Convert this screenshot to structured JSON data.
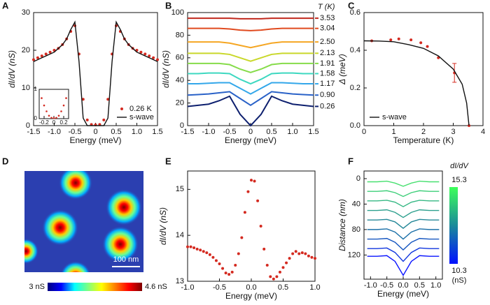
{
  "chart_data": [
    {
      "type": "line",
      "panel_label": "A",
      "xlabel": "Energy (meV)",
      "ylabel": "dI/dV (nS)",
      "xlim": [
        -1.5,
        1.5
      ],
      "ylim": [
        0,
        30
      ],
      "xticks": [
        -1.5,
        {
          "value": -1,
          "label": "-1.0"
        },
        -0.5,
        0,
        0.5,
        {
          "value": 1,
          "label": "1.0"
        },
        1.5
      ],
      "yticks": [
        0,
        10,
        20,
        30
      ],
      "legend": "lower right",
      "x": [
        -1.5,
        -1.4,
        -1.3,
        -1.2,
        -1.1,
        -1.0,
        -0.9,
        -0.8,
        -0.7,
        -0.6,
        -0.5,
        -0.4,
        -0.3,
        -0.2,
        -0.1,
        0,
        0.1,
        0.2,
        0.3,
        0.4,
        0.5,
        0.6,
        0.7,
        0.8,
        0.9,
        1.0,
        1.1,
        1.2,
        1.3,
        1.4,
        1.5
      ],
      "series": [
        {
          "name": "0.26 K",
          "mode": "markers",
          "color": "#d42a20",
          "values": [
            17.5,
            18,
            18.5,
            19,
            19.5,
            20,
            20.5,
            21.5,
            23,
            25,
            26.5,
            19,
            7,
            1.5,
            0.3,
            0.2,
            0.3,
            1.5,
            7,
            19,
            26.5,
            25,
            23,
            21.5,
            20.5,
            20,
            19.5,
            19,
            18.5,
            18,
            17.5
          ]
        },
        {
          "name": "s-wave",
          "mode": "line",
          "color": "#111111",
          "values": [
            17,
            17.5,
            18,
            18.5,
            19,
            19.5,
            20.5,
            21.5,
            23,
            25.5,
            27.5,
            17,
            2,
            0,
            0,
            0,
            0,
            0,
            2,
            17,
            27.5,
            25.5,
            23,
            21.5,
            20.5,
            19.5,
            19,
            18.5,
            18,
            17.5,
            17
          ]
        }
      ]
    },
    {
      "type": "scatter",
      "xlim": [
        -0.3,
        0.3
      ],
      "ylim": [
        0,
        1
      ],
      "xticks": [
        -0.2,
        0,
        0.2
      ],
      "yticks": [
        0,
        1
      ],
      "x": [
        -0.25,
        -0.2,
        -0.15,
        -0.1,
        -0.05,
        0,
        0.05,
        0.1,
        0.15,
        0.2,
        0.25
      ],
      "series": [
        {
          "mode": "markers",
          "color": "#d42a20",
          "values": [
            0.7,
            0.45,
            0.25,
            0.1,
            0.03,
            0.02,
            0.03,
            0.1,
            0.25,
            0.45,
            0.7
          ]
        }
      ]
    },
    {
      "type": "line",
      "panel_label": "B",
      "xlabel": "Energy (meV)",
      "ylabel": "dI/dV (nS)",
      "legend_title": "T (K)",
      "xlim": [
        -1.5,
        1.5
      ],
      "ylim": [
        0,
        100
      ],
      "xticks": [
        -1.5,
        {
          "value": -1,
          "label": "-1.0"
        },
        -0.5,
        0,
        0.5,
        {
          "value": 1,
          "label": "1.0"
        },
        1.5
      ],
      "yticks": [
        0,
        20,
        40,
        60,
        80,
        100
      ],
      "legend": "right",
      "x": [
        -1.5,
        -1.25,
        -1,
        -0.75,
        -0.5,
        -0.25,
        0,
        0.25,
        0.5,
        0.75,
        1,
        1.25,
        1.5
      ],
      "series": [
        {
          "name": "3.53",
          "color": "#c0271c",
          "values": [
            95,
            95,
            95,
            95,
            95,
            94.5,
            94.5,
            94.5,
            95,
            95,
            95,
            95,
            95
          ]
        },
        {
          "name": "3.04",
          "color": "#e04a1f",
          "values": [
            86,
            86,
            86,
            86,
            85.5,
            84.5,
            84,
            84.5,
            85.5,
            86,
            86,
            86,
            86
          ]
        },
        {
          "name": "2.50",
          "color": "#f5a623",
          "values": [
            74,
            74,
            74,
            74,
            73,
            71,
            69,
            71,
            73,
            74,
            74,
            74,
            74
          ]
        },
        {
          "name": "2.13",
          "color": "#c9d82a",
          "values": [
            64,
            64,
            64,
            64,
            63,
            60,
            57,
            60,
            63,
            64,
            64,
            64,
            64
          ]
        },
        {
          "name": "1.91",
          "color": "#86dc4a",
          "values": [
            55,
            55,
            55,
            55,
            54,
            50,
            47,
            50,
            54,
            55,
            55,
            55,
            55
          ]
        },
        {
          "name": "1.58",
          "color": "#3cd8c0",
          "values": [
            46,
            46,
            46.5,
            46.5,
            46,
            41,
            37,
            41,
            46,
            46.5,
            46.5,
            46,
            46
          ]
        },
        {
          "name": "1.17",
          "color": "#33a7ea",
          "values": [
            37,
            37,
            37.5,
            38,
            38,
            33,
            28,
            33,
            38,
            38,
            37.5,
            37,
            37
          ]
        },
        {
          "name": "0.90",
          "color": "#2a62c8",
          "values": [
            27,
            27.5,
            28,
            29,
            30,
            24,
            18,
            24,
            30,
            29,
            28,
            27.5,
            27
          ]
        },
        {
          "name": "0.26",
          "color": "#0d1f6e",
          "values": [
            17,
            18,
            19,
            22,
            26,
            10,
            0,
            10,
            26,
            22,
            19,
            18,
            17
          ]
        }
      ]
    },
    {
      "type": "scatter",
      "panel_label": "C",
      "xlabel": "Temperature (K)",
      "ylabel": "Δ (meV)",
      "xlim": [
        0,
        4
      ],
      "ylim": [
        0,
        0.6
      ],
      "xticks": [
        0,
        1,
        2,
        3,
        4
      ],
      "yticks": [
        {
          "value": 0,
          "label": "0.0"
        },
        0.2,
        0.4,
        0.6
      ],
      "legend": "lower left",
      "series": [
        {
          "mode": "markers",
          "color": "#d42a20",
          "x": [
            0.26,
            0.9,
            1.17,
            1.58,
            1.91,
            2.13,
            2.5,
            3.04,
            3.53
          ],
          "values": [
            0.45,
            0.455,
            0.46,
            0.455,
            0.44,
            0.42,
            0.36,
            0.28,
            0
          ],
          "errors": [
            null,
            null,
            null,
            null,
            null,
            null,
            null,
            0.05,
            null
          ]
        },
        {
          "name": "s-wave",
          "mode": "line",
          "color": "#111111",
          "x": [
            0,
            0.5,
            1,
            1.5,
            2,
            2.5,
            3,
            3.3,
            3.45,
            3.53
          ],
          "values": [
            0.45,
            0.449,
            0.445,
            0.43,
            0.41,
            0.37,
            0.3,
            0.22,
            0.12,
            0
          ]
        }
      ]
    },
    {
      "type": "image",
      "panel_label": "D",
      "scale_bar": "100 nm",
      "colorbar_labels": [
        "3 nS",
        "4.6 nS"
      ],
      "colormap": [
        "#00007f",
        "#0000ff",
        "#00ffff",
        "#7fff7f",
        "#ffff00",
        "#ff7f00",
        "#ff0000",
        "#7f0000"
      ]
    },
    {
      "type": "scatter",
      "panel_label": "E",
      "xlabel": "Energy (meV)",
      "ylabel": "dI/dV (nS)",
      "xlim": [
        -1,
        1
      ],
      "ylim": [
        13,
        15.4
      ],
      "xticks": [
        {
          "value": -1,
          "label": "-1.0"
        },
        -0.5,
        {
          "value": 0,
          "label": "0.0"
        },
        0.5,
        {
          "value": 1,
          "label": "1.0"
        }
      ],
      "yticks": [
        13,
        14,
        15
      ],
      "x": [
        -1,
        -0.95,
        -0.9,
        -0.85,
        -0.8,
        -0.75,
        -0.7,
        -0.65,
        -0.6,
        -0.55,
        -0.5,
        -0.45,
        -0.4,
        -0.35,
        -0.3,
        -0.25,
        -0.2,
        -0.15,
        -0.1,
        -0.05,
        0,
        0.05,
        0.1,
        0.15,
        0.2,
        0.25,
        0.3,
        0.35,
        0.4,
        0.45,
        0.5,
        0.55,
        0.6,
        0.65,
        0.7,
        0.75,
        0.8,
        0.85,
        0.9,
        0.95,
        1
      ],
      "series": [
        {
          "mode": "markers",
          "color": "#d42a20",
          "values": [
            13.75,
            13.75,
            13.73,
            13.7,
            13.68,
            13.65,
            13.62,
            13.58,
            13.52,
            13.45,
            13.38,
            13.28,
            13.18,
            13.15,
            13.2,
            13.35,
            13.6,
            13.95,
            14.5,
            14.95,
            15.2,
            15.18,
            14.75,
            14.2,
            13.7,
            13.35,
            13.1,
            13.05,
            13.1,
            13.2,
            13.3,
            13.4,
            13.5,
            13.6,
            13.65,
            13.6,
            13.62,
            13.6,
            13.55,
            13.52,
            13.5
          ]
        }
      ]
    },
    {
      "type": "line",
      "panel_label": "F",
      "xlabel": "Energy (meV)",
      "ylabel": "Distance (nm)",
      "xlim": [
        -1.2,
        1.2
      ],
      "ylim": [
        -12,
        158
      ],
      "y_inverted": true,
      "xticks": [
        {
          "value": -1,
          "label": "-1.0"
        },
        -0.5,
        {
          "value": 0,
          "label": "0.0"
        },
        0.5,
        {
          "value": 1,
          "label": "1.0"
        }
      ],
      "yticks": [
        0,
        40,
        80,
        120
      ],
      "colorbar_title": "dI/dV",
      "colorbar_ticks": [
        15.3,
        10.3
      ],
      "colorbar_unit": "(nS)",
      "colormap": [
        "#3dff5a",
        "#1a8a9a",
        "#0010ff"
      ],
      "x": [
        -1.1,
        -0.8,
        -0.5,
        -0.25,
        0,
        0.25,
        0.5,
        0.8,
        1.1
      ],
      "series": [
        {
          "color": "#48e070",
          "values": [
            5,
            5,
            4,
            7,
            12,
            7,
            4,
            5,
            5
          ]
        },
        {
          "color": "#3fcf7a",
          "values": [
            20,
            20,
            19,
            22,
            28,
            22,
            19,
            20,
            20
          ]
        },
        {
          "color": "#36b884",
          "values": [
            35,
            35,
            34,
            37,
            44,
            37,
            34,
            35,
            35
          ]
        },
        {
          "color": "#2ea08e",
          "values": [
            50,
            50,
            49,
            53,
            61,
            53,
            49,
            50,
            50
          ]
        },
        {
          "color": "#258898",
          "values": [
            65,
            65,
            64,
            68,
            78,
            68,
            64,
            65,
            65
          ]
        },
        {
          "color": "#1c70a8",
          "values": [
            80,
            80,
            79,
            84,
            95,
            84,
            79,
            80,
            80
          ]
        },
        {
          "color": "#1656c0",
          "values": [
            95,
            95,
            94,
            100,
            112,
            100,
            94,
            95,
            95
          ]
        },
        {
          "color": "#1036de",
          "values": [
            110,
            110,
            109,
            116,
            130,
            116,
            109,
            110,
            110
          ]
        },
        {
          "color": "#0a14ff",
          "values": [
            122,
            122,
            121,
            130,
            152,
            130,
            121,
            122,
            122
          ]
        }
      ]
    }
  ]
}
